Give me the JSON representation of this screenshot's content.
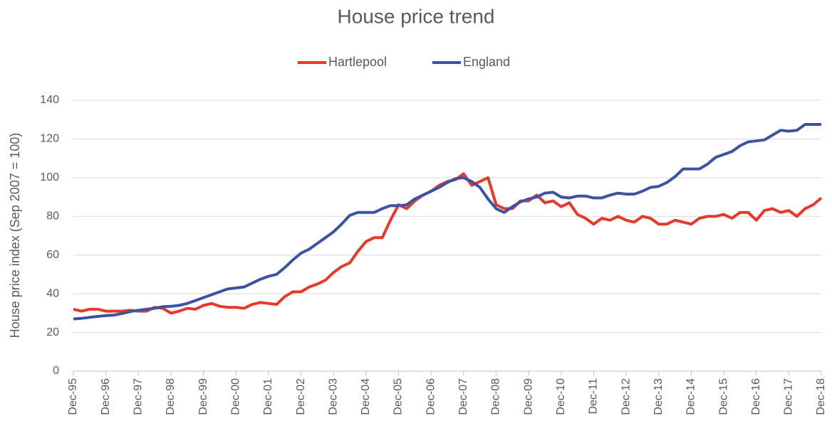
{
  "chart_data": {
    "type": "line",
    "title": "House price trend",
    "y_label": "House price index (Sep 2007 = 100)",
    "categories": [
      "Dec-95",
      null,
      null,
      null,
      "Dec-96",
      null,
      null,
      null,
      "Dec-97",
      null,
      null,
      null,
      "Dec-98",
      null,
      null,
      null,
      "Dec-99",
      null,
      null,
      null,
      "Dec-00",
      null,
      null,
      null,
      "Dec-01",
      null,
      null,
      null,
      "Dec-02",
      null,
      null,
      null,
      "Dec-03",
      null,
      null,
      null,
      "Dec-04",
      null,
      null,
      null,
      "Dec-05",
      null,
      null,
      null,
      "Dec-06",
      null,
      null,
      null,
      "Dec-07",
      null,
      null,
      null,
      "Dec-08",
      null,
      null,
      null,
      "Dec-09",
      null,
      null,
      null,
      "Dec-10",
      null,
      null,
      null,
      "Dec-11",
      null,
      null,
      null,
      "Dec-12",
      null,
      null,
      null,
      "Dec-13",
      null,
      null,
      null,
      "Dec-14",
      null,
      null,
      null,
      "Dec-15",
      null,
      null,
      null,
      "Dec-16",
      null,
      null,
      null,
      "Dec-17",
      null,
      null,
      null,
      "Dec-18"
    ],
    "series": [
      {
        "name": "Hartlepool",
        "color": "#e8382a",
        "values": [
          32,
          31,
          32,
          32,
          31,
          31,
          31,
          31.5,
          31,
          31,
          33,
          32.5,
          30,
          31,
          32.5,
          32,
          34,
          35,
          33.5,
          33,
          33,
          32.5,
          34.5,
          35.5,
          35,
          34.5,
          38.5,
          41,
          41,
          43.5,
          45,
          47,
          51,
          54,
          56,
          62,
          67,
          69,
          69,
          78,
          86,
          84,
          88,
          91,
          93,
          96,
          98,
          99,
          102,
          96,
          98,
          100,
          86,
          84,
          84,
          88,
          88,
          91,
          87,
          88,
          85,
          87,
          81,
          79,
          76,
          79,
          78,
          80,
          78,
          77,
          80,
          79,
          76,
          76,
          78,
          77,
          76,
          79,
          80,
          80,
          81,
          79,
          82,
          82,
          78,
          83,
          84,
          82,
          83,
          80,
          84,
          86,
          89.5
        ]
      },
      {
        "name": "England",
        "color": "#3c53a4",
        "values": [
          27,
          27.3,
          27.8,
          28.3,
          28.7,
          29,
          29.8,
          30.8,
          31.5,
          32,
          32.5,
          33.3,
          33.5,
          34,
          35,
          36.5,
          38,
          39.5,
          41,
          42.5,
          43,
          43.5,
          45.5,
          47.5,
          49,
          50,
          53.5,
          57.5,
          61,
          63,
          66,
          69,
          72,
          76,
          80.5,
          82,
          82,
          82,
          84,
          85.5,
          85.5,
          86,
          89,
          91,
          93,
          95,
          97.5,
          99.5,
          100,
          98,
          95,
          89,
          84,
          82,
          85,
          87.5,
          89,
          90,
          92,
          92.5,
          90,
          89.5,
          90.5,
          90.5,
          89.5,
          89.5,
          91,
          92,
          91.5,
          91.5,
          93,
          95,
          95.5,
          97.5,
          100.5,
          104.5,
          104.5,
          104.5,
          107,
          110.5,
          112,
          113.5,
          116.5,
          118.5,
          119,
          119.5,
          122,
          124.5,
          124,
          124.5,
          127.5,
          127.5,
          127.5
        ]
      }
    ],
    "ylim": [
      0,
      140
    ],
    "yticks": [
      0,
      20,
      40,
      60,
      80,
      100,
      120,
      140
    ],
    "grid": true,
    "legend": "top"
  }
}
